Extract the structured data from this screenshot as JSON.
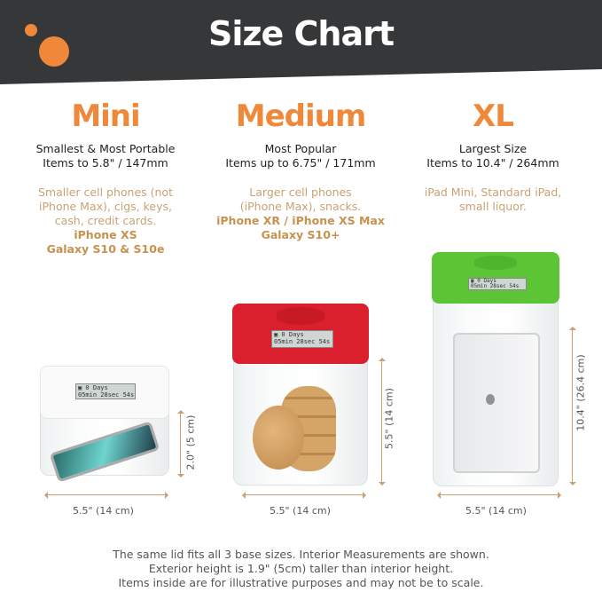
{
  "header": {
    "title": "Size Chart",
    "bg_color": "#353738",
    "accent_color": "#f0883a"
  },
  "sizes": [
    {
      "name": "Mini",
      "subtitle": "Smallest & Most Portable",
      "capacity": "Items to 5.8\" / 147mm",
      "desc": [
        "Smaller cell phones (not",
        "iPhone Max), cigs, keys,",
        "cash, credit cards."
      ],
      "models": [
        "iPhone XS",
        "Galaxy S10 & S10e"
      ],
      "width_label": "5.5\" (14 cm)",
      "height_label": "2.0\" (5 cm)",
      "lid_color": "#ffffff",
      "contents": "phone"
    },
    {
      "name": "Medium",
      "subtitle": "Most Popular",
      "capacity": "Items up to 6.75\" / 171mm",
      "desc": [
        "Larger cell phones",
        "(iPhone Max), snacks."
      ],
      "models": [
        "iPhone XR / iPhone XS Max",
        "Galaxy S10+"
      ],
      "width_label": "5.5\" (14 cm)",
      "height_label": "5.5\" (14 cm)",
      "lid_color": "#d9202c",
      "contents": "cookies"
    },
    {
      "name": "XL",
      "subtitle": "Largest Size",
      "capacity": "Items to 10.4\" / 264mm",
      "desc": [
        "iPad Mini, Standard iPad,",
        "small liquor."
      ],
      "models": [],
      "width_label": "5.5\" (14 cm)",
      "height_label": "10.4\" (26.4 cm)",
      "lid_color": "#5cc536",
      "contents": "tablet"
    }
  ],
  "lcd": {
    "line1": "▣    0 Days",
    "line2": "05min 28sec 54s"
  },
  "footer": [
    "The same lid fits all 3 base sizes. Interior Measurements are shown.",
    "Exterior height is 1.9\" (5cm) taller than interior height.",
    "Items inside are for illustrative purposes and may not be to scale."
  ]
}
